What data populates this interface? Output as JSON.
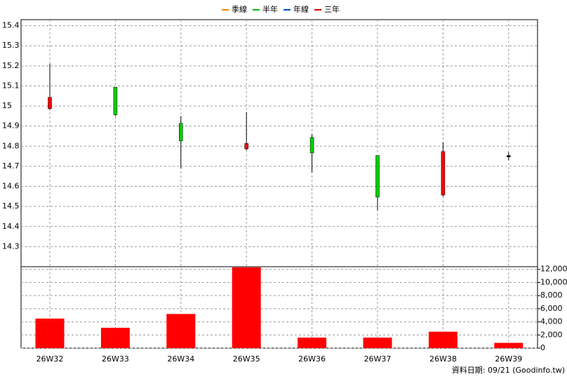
{
  "chart_data": [
    {
      "type": "candlestick",
      "legend": [
        {
          "name": "季線",
          "color": "#ff8000"
        },
        {
          "name": "半年",
          "color": "#00c000"
        },
        {
          "name": "年線",
          "color": "#0050d0"
        },
        {
          "name": "三年",
          "color": "#e00000"
        }
      ],
      "categories": [
        "26W32",
        "26W33",
        "26W34",
        "26W35",
        "26W36",
        "26W37",
        "26W38",
        "26W39"
      ],
      "open": [
        14.99,
        15.09,
        14.91,
        14.79,
        14.84,
        14.75,
        14.56,
        14.75
      ],
      "high": [
        15.21,
        15.09,
        14.95,
        14.97,
        14.86,
        14.75,
        14.82,
        14.77
      ],
      "low": [
        14.98,
        14.95,
        14.69,
        14.78,
        14.67,
        14.48,
        14.55,
        14.73
      ],
      "close": [
        15.04,
        14.96,
        14.83,
        14.81,
        14.77,
        14.55,
        14.77,
        14.75
      ],
      "up_color": "#ff0000",
      "down_color": "#00d000",
      "flat_color": "#000000",
      "ylim": [
        14.2,
        15.43
      ],
      "yticks": [
        14.3,
        14.4,
        14.5,
        14.6,
        14.7,
        14.8,
        14.9,
        15,
        15.1,
        15.2,
        15.3,
        15.4
      ],
      "grid": true
    },
    {
      "type": "bar",
      "values": [
        4500,
        3100,
        5200,
        12300,
        1600,
        1600,
        2500,
        800
      ],
      "color": "#ff0000",
      "ylim": [
        0,
        12400
      ],
      "yticks": [
        0,
        {
          "value": 2000,
          "label": "2,000"
        },
        {
          "value": 4000,
          "label": "4,000"
        },
        {
          "value": 6000,
          "label": "6,000"
        },
        {
          "value": 8000,
          "label": "8,000"
        },
        {
          "value": 10000,
          "label": "10,000"
        },
        {
          "value": 12000,
          "label": "12,000"
        }
      ],
      "grid": true
    }
  ],
  "footer": "資料日期: 09/21  (Goodinfo.tw)"
}
